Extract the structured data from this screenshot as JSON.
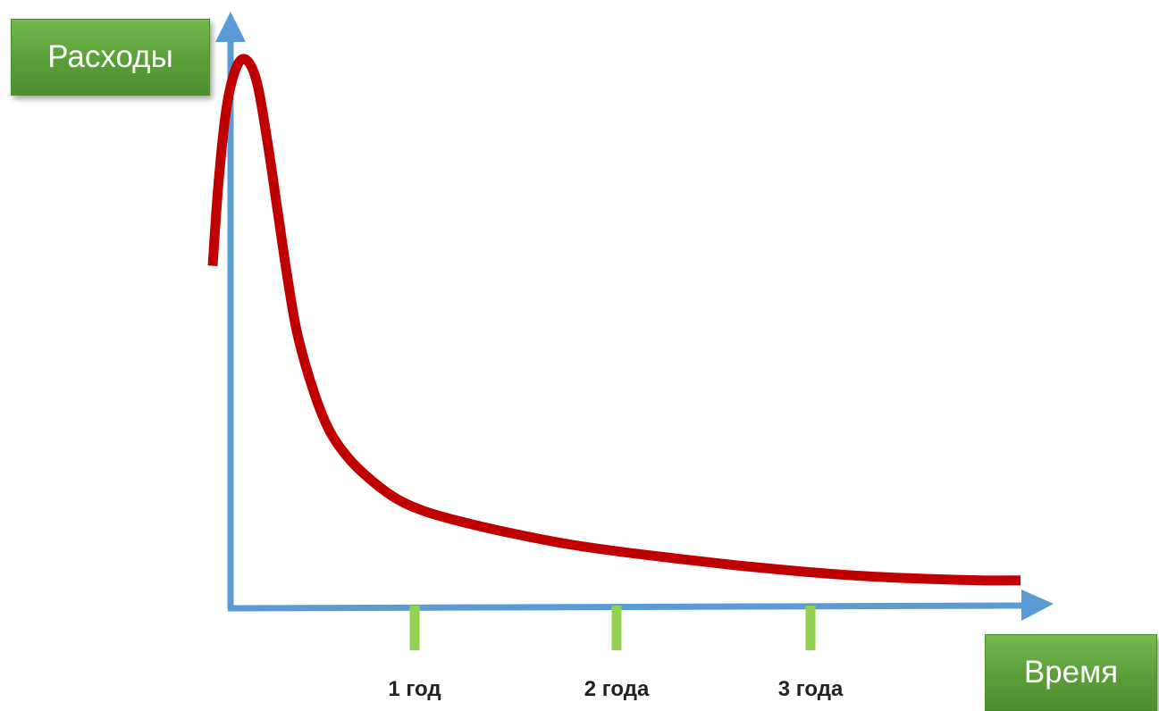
{
  "chart_data": {
    "type": "line",
    "title": "",
    "ylabel": "Расходы",
    "xlabel": "Время",
    "xlim": [
      0,
      4
    ],
    "ylim": [
      0,
      100
    ],
    "x_ticks": [
      {
        "value": 1,
        "label": "1 год"
      },
      {
        "value": 2,
        "label": "2 года"
      },
      {
        "value": 3,
        "label": "3 года"
      }
    ],
    "series": [
      {
        "color": "#c00000",
        "points": [
          [
            0.0,
            60
          ],
          [
            0.03,
            75
          ],
          [
            0.07,
            88
          ],
          [
            0.12,
            95
          ],
          [
            0.17,
            96
          ],
          [
            0.22,
            92
          ],
          [
            0.27,
            82
          ],
          [
            0.32,
            70
          ],
          [
            0.37,
            58
          ],
          [
            0.42,
            48
          ],
          [
            0.5,
            38
          ],
          [
            0.58,
            31
          ],
          [
            0.68,
            26
          ],
          [
            0.8,
            22
          ],
          [
            0.92,
            19
          ],
          [
            1.05,
            17
          ],
          [
            1.25,
            15
          ],
          [
            1.5,
            13
          ],
          [
            1.75,
            11.3
          ],
          [
            2.0,
            10
          ],
          [
            2.3,
            8.7
          ],
          [
            2.6,
            7.5
          ],
          [
            2.9,
            6.5
          ],
          [
            3.2,
            5.7
          ],
          [
            3.5,
            5.2
          ],
          [
            3.8,
            4.9
          ],
          [
            4.0,
            4.9
          ]
        ]
      }
    ],
    "axis_color": "#5b9bd5",
    "tick_color": "#92d050",
    "label_box_color": "#5fa33a",
    "grid": false,
    "legend": "none"
  }
}
